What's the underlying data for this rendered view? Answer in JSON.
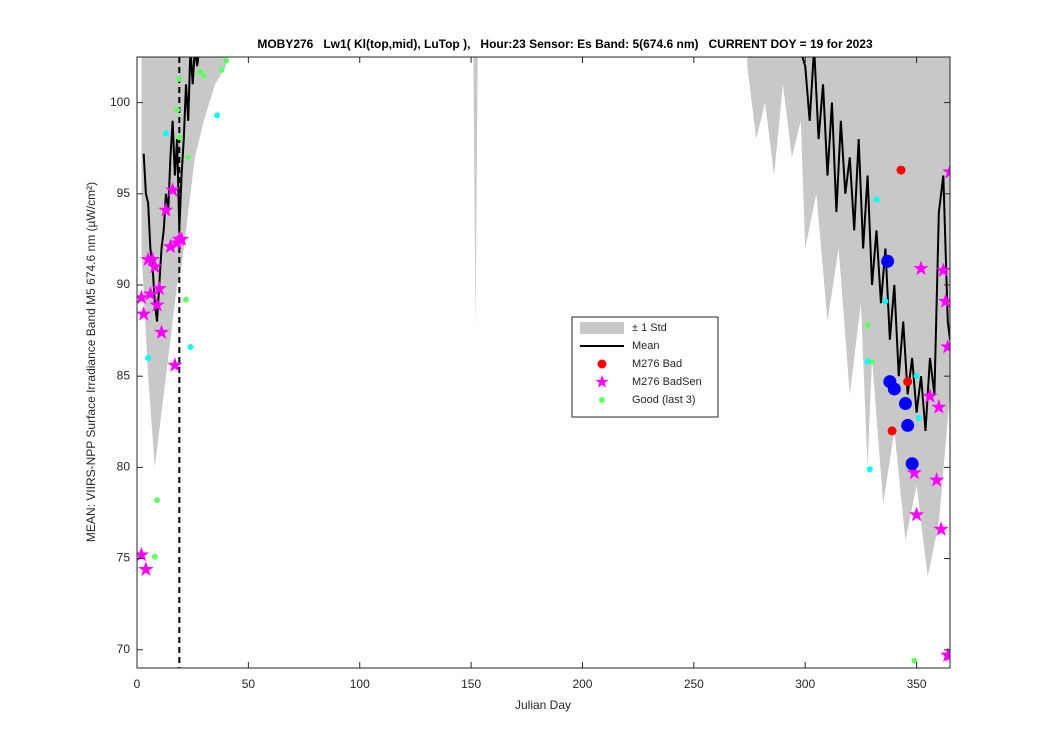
{
  "chart_data": {
    "type": "line",
    "title": "MOBY276   Lw1( Kl(top,mid), LuTop ),   Hour:23 Sensor: Es Band: 5(674.6 nm)   CURRENT DOY = 19 for 2023",
    "xlabel": "Julian Day",
    "ylabel": "MEAN: VIIRS-NPP Surface Irradiance Band M5 674.6 nm (µW/cm²)",
    "xlim": [
      0,
      365
    ],
    "ylim": [
      69,
      102.5
    ],
    "xticks": [
      0,
      50,
      100,
      150,
      200,
      250,
      300,
      350
    ],
    "yticks": [
      70,
      75,
      80,
      85,
      90,
      95,
      100
    ],
    "grid": false,
    "legend": "center",
    "vline": {
      "x": 19,
      "style": "dashed",
      "color": "#000000"
    },
    "series": [
      {
        "name": "± 1 Std",
        "color": "#c8c8c8",
        "fill": true,
        "x": [
          2,
          5,
          8,
          10,
          12,
          14,
          16,
          18,
          20,
          22,
          24,
          26,
          30,
          35,
          40,
          null,
          151,
          152,
          153,
          null,
          274,
          278,
          282,
          286,
          290,
          294,
          298,
          300,
          305,
          310,
          315,
          320,
          325,
          328,
          330,
          335,
          340,
          345,
          350,
          355,
          360,
          365
        ],
        "lower": [
          92,
          85,
          80,
          82,
          84,
          86,
          88,
          90,
          91,
          93,
          95,
          97,
          99,
          101,
          102,
          null,
          103,
          87.6,
          103,
          null,
          102,
          98,
          100,
          96,
          101,
          97,
          99,
          92,
          95,
          88,
          92,
          84,
          89,
          80,
          86,
          78,
          82,
          76,
          79,
          74,
          77,
          84
        ],
        "upper": [
          103,
          103,
          103,
          103,
          103,
          103,
          103,
          103,
          103,
          103,
          103,
          103,
          103,
          103,
          103,
          null,
          103,
          103,
          103,
          null,
          103,
          103,
          103,
          103,
          103,
          103,
          103,
          103,
          103,
          103,
          103,
          103,
          103,
          103,
          103,
          103,
          103,
          103,
          103,
          103,
          103,
          103
        ]
      },
      {
        "name": "Mean",
        "color": "#000000",
        "line": true,
        "x": [
          3,
          4,
          5,
          6,
          7,
          8,
          9,
          10,
          11,
          12,
          13,
          14,
          15,
          16,
          17,
          18,
          19,
          20,
          21,
          22,
          23,
          24,
          25,
          26,
          27,
          28,
          null,
          285,
          290,
          295,
          300,
          302,
          304,
          306,
          308,
          310,
          312,
          314,
          316,
          318,
          320,
          322,
          324,
          326,
          328,
          330,
          332,
          334,
          336,
          338,
          340,
          342,
          344,
          346,
          348,
          350,
          352,
          354,
          356,
          358,
          360,
          362,
          364,
          365
        ],
        "values": [
          97.2,
          95,
          94.5,
          92,
          91,
          89,
          88,
          90,
          92,
          93,
          95,
          94,
          97,
          99,
          96,
          98,
          93,
          96,
          98,
          101,
          99,
          103,
          101,
          103,
          102,
          103,
          null,
          104,
          103,
          104,
          102,
          99,
          103,
          98,
          101,
          96,
          100,
          94,
          99,
          95,
          97,
          93,
          98,
          92,
          96,
          90,
          93,
          89,
          92,
          87,
          90,
          85,
          88,
          84,
          86,
          83,
          85,
          82,
          86,
          84,
          94,
          96,
          88,
          87
        ]
      },
      {
        "name": "M276 Bad",
        "color": "#ff0000",
        "marker": "circle",
        "marker_size": 9,
        "x": [
          343,
          346,
          339
        ],
        "values": [
          96.3,
          84.7,
          82.0
        ]
      },
      {
        "name": "M276 BadSen",
        "color": "#ff00ff",
        "marker": "star",
        "marker_size": 13,
        "x": [
          2,
          3,
          2,
          4,
          5,
          6,
          7,
          8,
          9,
          10,
          11,
          13,
          15,
          16,
          17,
          18,
          19,
          20,
          352,
          362,
          363,
          364,
          356,
          360,
          349,
          359,
          350,
          361,
          365,
          364,
          365
        ],
        "values": [
          89.3,
          88.4,
          75.2,
          74.4,
          91.4,
          89.5,
          91.4,
          91.0,
          88.9,
          89.8,
          87.4,
          94.1,
          92.1,
          95.2,
          85.6,
          92.3,
          92.5,
          92.5,
          90.9,
          90.8,
          89.1,
          86.6,
          83.9,
          83.3,
          79.7,
          79.3,
          77.4,
          76.6,
          96.2,
          69.7,
          69.7
        ]
      },
      {
        "name": "Good (last 3)",
        "color": "#66ff66",
        "marker": "circle",
        "marker_size": 6,
        "x": [
          9,
          8,
          19,
          28,
          30,
          38,
          40,
          19,
          18,
          23,
          22,
          328,
          330,
          349
        ],
        "values": [
          78.2,
          75.1,
          101.3,
          101.7,
          101.5,
          101.8,
          102.3,
          98.1,
          99.6,
          97.0,
          89.2,
          87.8,
          85.8,
          69.4
        ]
      },
      {
        "color": "#00ffff",
        "marker": "circle",
        "marker_size": 6,
        "x": [
          5,
          13,
          36,
          24,
          332,
          336,
          328,
          329,
          350,
          351
        ],
        "values": [
          86.0,
          98.3,
          99.3,
          86.6,
          94.7,
          89.1,
          85.8,
          79.9,
          85.0,
          82.7
        ]
      },
      {
        "color": "#0000ff",
        "marker": "circle",
        "marker_size": 13,
        "x": [
          337,
          338,
          340,
          345,
          346,
          348
        ],
        "values": [
          91.3,
          84.7,
          84.3,
          83.5,
          82.3,
          80.2
        ]
      }
    ]
  }
}
